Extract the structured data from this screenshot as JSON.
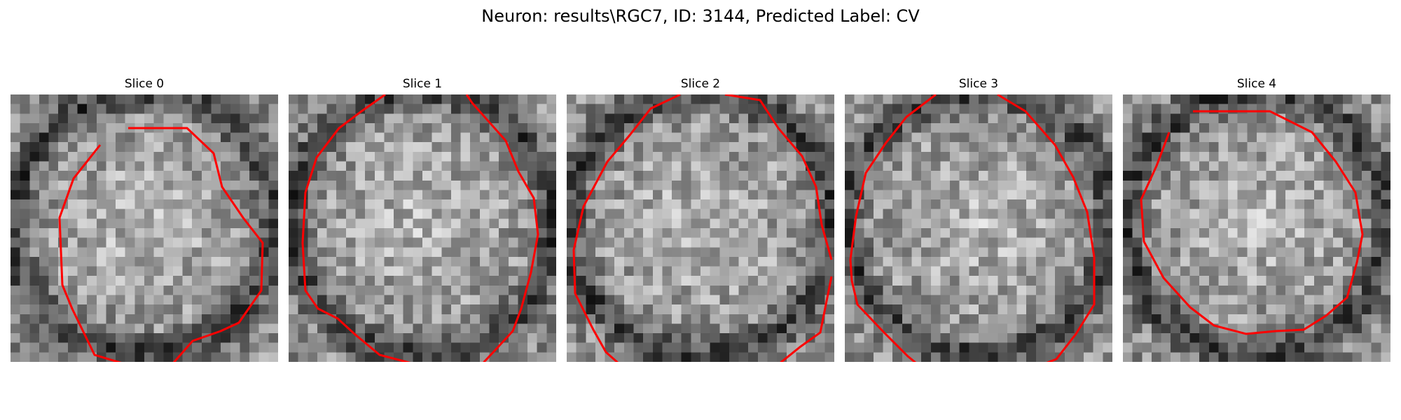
{
  "figure": {
    "title": "Neuron: results\\RGC7, ID: 3144, Predicted Label: CV"
  },
  "panels": [
    {
      "title": "Slice 0"
    },
    {
      "title": "Slice 1"
    },
    {
      "title": "Slice 2"
    },
    {
      "title": "Slice 3"
    },
    {
      "title": "Slice 4"
    }
  ],
  "colors": {
    "contour": "#ff0000",
    "background": "#ffffff"
  }
}
